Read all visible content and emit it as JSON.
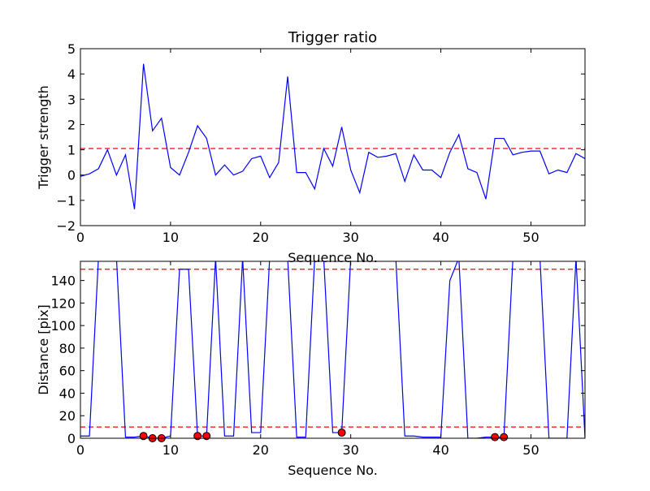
{
  "colors": {
    "line": "#0000ff",
    "threshold": "#ff0000",
    "marker_fill": "#ff0000",
    "marker_edge": "#000000",
    "axes": "#000000",
    "background": "#ffffff"
  },
  "chart_data": [
    {
      "type": "line",
      "title": "Trigger ratio",
      "xlabel": "Sequence No.",
      "ylabel": "Trigger strength",
      "xlim": [
        0,
        56
      ],
      "ylim": [
        -2,
        5
      ],
      "xticks": [
        0,
        10,
        20,
        30,
        40,
        50
      ],
      "yticks": [
        -2,
        -1,
        0,
        1,
        2,
        3,
        4,
        5
      ],
      "grid": false,
      "series": [
        {
          "style": "solid",
          "x": [
            0,
            1,
            2,
            3,
            4,
            5,
            6,
            7,
            8,
            9,
            10,
            11,
            12,
            13,
            14,
            15,
            16,
            17,
            18,
            19,
            20,
            21,
            22,
            23,
            24,
            25,
            26,
            27,
            28,
            29,
            30,
            31,
            32,
            33,
            34,
            35,
            36,
            37,
            38,
            39,
            40,
            41,
            42,
            43,
            44,
            45,
            46,
            47,
            48,
            49,
            50,
            51,
            52,
            53,
            54,
            55,
            56
          ],
          "y": [
            -0.05,
            0.05,
            0.25,
            1.0,
            0.0,
            0.8,
            -1.35,
            4.4,
            1.75,
            2.25,
            0.3,
            0.0,
            0.9,
            1.95,
            1.45,
            0.0,
            0.4,
            0.0,
            0.15,
            0.65,
            0.75,
            -0.1,
            0.5,
            3.9,
            0.1,
            0.1,
            -0.55,
            1.05,
            0.35,
            1.9,
            0.2,
            -0.7,
            0.9,
            0.7,
            0.75,
            0.85,
            -0.25,
            0.8,
            0.2,
            0.2,
            -0.1,
            0.9,
            1.6,
            0.25,
            0.1,
            -0.95,
            1.45,
            1.45,
            0.8,
            0.9,
            0.95,
            0.95,
            0.05,
            0.2,
            0.1,
            0.85,
            0.65
          ]
        }
      ],
      "hlines": [
        {
          "y": 1.05,
          "style": "dashed"
        }
      ]
    },
    {
      "type": "line",
      "title": "",
      "xlabel": "Sequence No.",
      "ylabel": "Distance [pix]",
      "xlim": [
        0,
        56
      ],
      "ylim": [
        0,
        157
      ],
      "xticks": [
        0,
        10,
        20,
        30,
        40,
        50
      ],
      "yticks": [
        0,
        20,
        40,
        60,
        80,
        100,
        120,
        140
      ],
      "grid": false,
      "series": [
        {
          "style": "solid",
          "x": [
            0,
            1,
            2,
            3,
            4,
            5,
            6,
            7,
            8,
            9,
            10,
            11,
            12,
            13,
            14,
            15,
            16,
            17,
            18,
            19,
            20,
            21,
            22,
            23,
            24,
            25,
            26,
            27,
            28,
            29,
            30,
            31,
            32,
            33,
            34,
            35,
            36,
            37,
            38,
            39,
            40,
            41,
            42,
            43,
            44,
            45,
            46,
            47,
            48,
            49,
            50,
            51,
            52,
            53,
            54,
            55,
            56
          ],
          "y": [
            2,
            2,
            160,
            160,
            160,
            1,
            1,
            2,
            0,
            0,
            2,
            150,
            150,
            2,
            2,
            160,
            2,
            2,
            160,
            5,
            5,
            160,
            160,
            160,
            1,
            1,
            160,
            160,
            5,
            5,
            160,
            160,
            160,
            160,
            160,
            160,
            2,
            2,
            1,
            1,
            1,
            140,
            160,
            0,
            0,
            1,
            1,
            1,
            160,
            160,
            160,
            160,
            0,
            0,
            0,
            160,
            0
          ]
        },
        {
          "style": "markers",
          "x": [
            7,
            8,
            9,
            13,
            14,
            29,
            46,
            47
          ],
          "y": [
            2,
            0,
            0,
            2,
            2,
            5,
            1,
            1
          ]
        }
      ],
      "hlines": [
        {
          "y": 150,
          "style": "dashed"
        },
        {
          "y": 10,
          "style": "dashed"
        }
      ]
    }
  ]
}
